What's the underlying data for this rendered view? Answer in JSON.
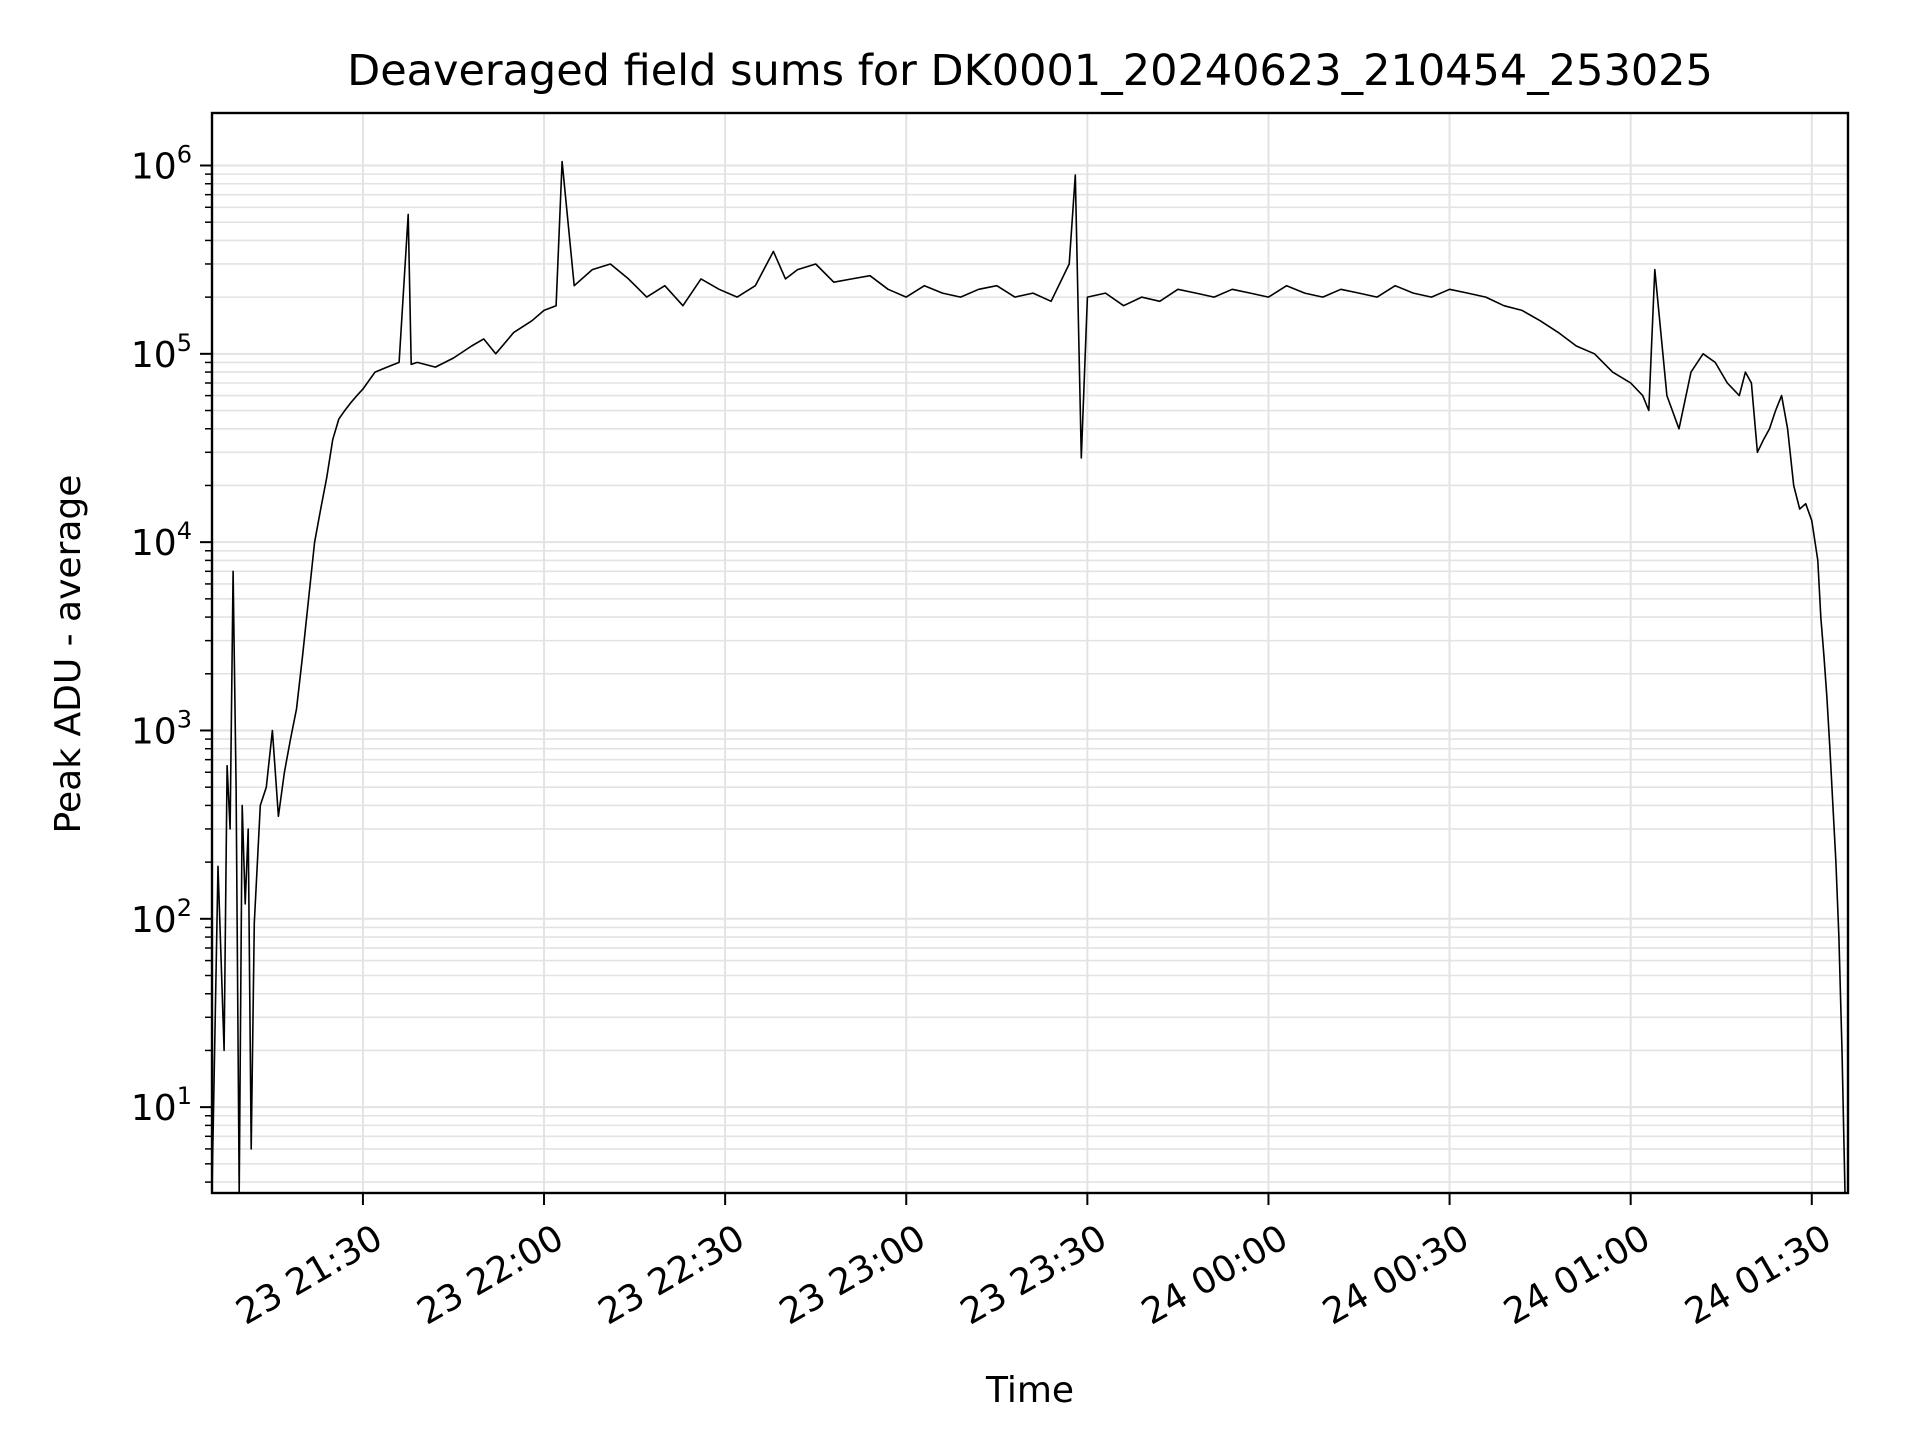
{
  "chart_data": {
    "type": "line",
    "title": "Deaveraged field sums for DK0001_20240623_210454_253025",
    "xlabel": "Time",
    "ylabel": "Peak ADU - average",
    "y_scale": "log",
    "ylim": [
      3.5,
      1900000
    ],
    "xlim": [
      "2024-06-23 21:05",
      "2024-06-24 01:36"
    ],
    "grid": true,
    "line_color": "#000000",
    "x_ticks": [
      {
        "t": "2024-06-23 21:30",
        "label": "23 21:30"
      },
      {
        "t": "2024-06-23 22:00",
        "label": "23 22:00"
      },
      {
        "t": "2024-06-23 22:30",
        "label": "23 22:30"
      },
      {
        "t": "2024-06-23 23:00",
        "label": "23 23:00"
      },
      {
        "t": "2024-06-23 23:30",
        "label": "23 23:30"
      },
      {
        "t": "2024-06-24 00:00",
        "label": "24 00:00"
      },
      {
        "t": "2024-06-24 00:30",
        "label": "24 00:30"
      },
      {
        "t": "2024-06-24 01:00",
        "label": "24 01:00"
      },
      {
        "t": "2024-06-24 01:30",
        "label": "24 01:30"
      }
    ],
    "y_ticks": [
      {
        "value": 10,
        "base": "10",
        "exp": "1"
      },
      {
        "value": 100,
        "base": "10",
        "exp": "2"
      },
      {
        "value": 1000,
        "base": "10",
        "exp": "3"
      },
      {
        "value": 10000,
        "base": "10",
        "exp": "4"
      },
      {
        "value": 100000,
        "base": "10",
        "exp": "5"
      },
      {
        "value": 1000000,
        "base": "10",
        "exp": "6"
      }
    ],
    "series": [
      {
        "x": [
          "2024-06-23 21:05:00",
          "2024-06-23 21:06:00",
          "2024-06-23 21:07:00",
          "2024-06-23 21:07:30",
          "2024-06-23 21:08:00",
          "2024-06-23 21:08:30",
          "2024-06-23 21:09:00",
          "2024-06-23 21:09:30",
          "2024-06-23 21:10:00",
          "2024-06-23 21:10:30",
          "2024-06-23 21:11:00",
          "2024-06-23 21:11:30",
          "2024-06-23 21:12:00",
          "2024-06-23 21:13:00",
          "2024-06-23 21:14:00",
          "2024-06-23 21:15:00",
          "2024-06-23 21:16:00",
          "2024-06-23 21:17:00",
          "2024-06-23 21:18:00",
          "2024-06-23 21:19:00",
          "2024-06-23 21:20:00",
          "2024-06-23 21:21:00",
          "2024-06-23 21:22:00",
          "2024-06-23 21:23:00",
          "2024-06-23 21:24:00",
          "2024-06-23 21:25:00",
          "2024-06-23 21:26:00",
          "2024-06-23 21:27:00",
          "2024-06-23 21:28:00",
          "2024-06-23 21:29:00",
          "2024-06-23 21:30:00",
          "2024-06-23 21:32:00",
          "2024-06-23 21:34:00",
          "2024-06-23 21:36:00",
          "2024-06-23 21:37:30",
          "2024-06-23 21:38:00",
          "2024-06-23 21:39:00",
          "2024-06-23 21:42:00",
          "2024-06-23 21:45:00",
          "2024-06-23 21:48:00",
          "2024-06-23 21:50:00",
          "2024-06-23 21:52:00",
          "2024-06-23 21:55:00",
          "2024-06-23 21:58:00",
          "2024-06-23 22:00:00",
          "2024-06-23 22:02:00",
          "2024-06-23 22:03:00",
          "2024-06-23 22:05:00",
          "2024-06-23 22:08:00",
          "2024-06-23 22:11:00",
          "2024-06-23 22:14:00",
          "2024-06-23 22:17:00",
          "2024-06-23 22:20:00",
          "2024-06-23 22:23:00",
          "2024-06-23 22:26:00",
          "2024-06-23 22:29:00",
          "2024-06-23 22:32:00",
          "2024-06-23 22:35:00",
          "2024-06-23 22:38:00",
          "2024-06-23 22:40:00",
          "2024-06-23 22:42:00",
          "2024-06-23 22:45:00",
          "2024-06-23 22:48:00",
          "2024-06-23 22:51:00",
          "2024-06-23 22:54:00",
          "2024-06-23 22:57:00",
          "2024-06-23 23:00:00",
          "2024-06-23 23:03:00",
          "2024-06-23 23:06:00",
          "2024-06-23 23:09:00",
          "2024-06-23 23:12:00",
          "2024-06-23 23:15:00",
          "2024-06-23 23:18:00",
          "2024-06-23 23:21:00",
          "2024-06-23 23:24:00",
          "2024-06-23 23:27:00",
          "2024-06-23 23:28:00",
          "2024-06-23 23:29:00",
          "2024-06-23 23:30:00",
          "2024-06-23 23:33:00",
          "2024-06-23 23:36:00",
          "2024-06-23 23:39:00",
          "2024-06-23 23:42:00",
          "2024-06-23 23:45:00",
          "2024-06-23 23:48:00",
          "2024-06-23 23:51:00",
          "2024-06-23 23:54:00",
          "2024-06-23 23:57:00",
          "2024-06-24 00:00:00",
          "2024-06-24 00:03:00",
          "2024-06-24 00:06:00",
          "2024-06-24 00:09:00",
          "2024-06-24 00:12:00",
          "2024-06-24 00:15:00",
          "2024-06-24 00:18:00",
          "2024-06-24 00:21:00",
          "2024-06-24 00:24:00",
          "2024-06-24 00:27:00",
          "2024-06-24 00:30:00",
          "2024-06-24 00:33:00",
          "2024-06-24 00:36:00",
          "2024-06-24 00:39:00",
          "2024-06-24 00:42:00",
          "2024-06-24 00:45:00",
          "2024-06-24 00:48:00",
          "2024-06-24 00:51:00",
          "2024-06-24 00:54:00",
          "2024-06-24 00:57:00",
          "2024-06-24 01:00:00",
          "2024-06-24 01:02:00",
          "2024-06-24 01:03:00",
          "2024-06-24 01:04:00",
          "2024-06-24 01:06:00",
          "2024-06-24 01:08:00",
          "2024-06-24 01:10:00",
          "2024-06-24 01:12:00",
          "2024-06-24 01:14:00",
          "2024-06-24 01:16:00",
          "2024-06-24 01:18:00",
          "2024-06-24 01:19:00",
          "2024-06-24 01:20:00",
          "2024-06-24 01:21:00",
          "2024-06-24 01:22:00",
          "2024-06-24 01:23:00",
          "2024-06-24 01:24:00",
          "2024-06-24 01:25:00",
          "2024-06-24 01:26:00",
          "2024-06-24 01:27:00",
          "2024-06-24 01:28:00",
          "2024-06-24 01:29:00",
          "2024-06-24 01:30:00",
          "2024-06-24 01:31:00",
          "2024-06-24 01:31:30",
          "2024-06-24 01:32:00",
          "2024-06-24 01:32:30",
          "2024-06-24 01:33:00",
          "2024-06-24 01:33:30",
          "2024-06-24 01:34:00",
          "2024-06-24 01:34:30",
          "2024-06-24 01:35:00",
          "2024-06-24 01:35:30"
        ],
        "y": [
          3.5,
          190,
          20,
          650,
          300,
          7000,
          500,
          3.5,
          400,
          120,
          300,
          6,
          95,
          400,
          500,
          1000,
          350,
          600,
          900,
          1300,
          2500,
          5000,
          10000,
          15000,
          22000,
          35000,
          45000,
          50000,
          55000,
          60000,
          65000,
          80000,
          85000,
          90000,
          550000,
          88000,
          90000,
          85000,
          95000,
          110000,
          120000,
          100000,
          130000,
          150000,
          170000,
          180000,
          1050000,
          230000,
          280000,
          300000,
          250000,
          200000,
          230000,
          180000,
          250000,
          220000,
          200000,
          230000,
          350000,
          250000,
          280000,
          300000,
          240000,
          250000,
          260000,
          220000,
          200000,
          230000,
          210000,
          200000,
          220000,
          230000,
          200000,
          210000,
          190000,
          300000,
          890000,
          28000,
          200000,
          210000,
          180000,
          200000,
          190000,
          220000,
          210000,
          200000,
          220000,
          210000,
          200000,
          230000,
          210000,
          200000,
          220000,
          210000,
          200000,
          230000,
          210000,
          200000,
          220000,
          210000,
          200000,
          180000,
          170000,
          150000,
          130000,
          110000,
          100000,
          80000,
          70000,
          60000,
          50000,
          280000,
          60000,
          40000,
          80000,
          100000,
          90000,
          70000,
          60000,
          80000,
          70000,
          30000,
          35000,
          40000,
          50000,
          60000,
          40000,
          20000,
          15000,
          16000,
          13000,
          8000,
          4000,
          2500,
          1500,
          800,
          400,
          200,
          80,
          20,
          3.5
        ]
      }
    ]
  }
}
